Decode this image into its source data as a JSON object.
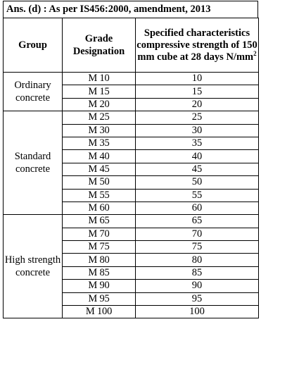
{
  "answer_heading": "Ans. (d) : As per IS456:2000, amendment, 2013",
  "table": {
    "headers": {
      "group": "Group",
      "grade_designation": "Grade Designation",
      "strength": "Specified characteristics compressive strength of 150 mm cube at 28 days N/mm",
      "strength_unit_exponent": "2"
    },
    "groups": [
      {
        "name": "Ordinary concrete",
        "rows": [
          {
            "grade": "M 10",
            "strength": "10"
          },
          {
            "grade": "M 15",
            "strength": "15"
          },
          {
            "grade": "M 20",
            "strength": "20"
          }
        ]
      },
      {
        "name": "Standard concrete",
        "rows": [
          {
            "grade": "M 25",
            "strength": "25"
          },
          {
            "grade": "M 30",
            "strength": "30"
          },
          {
            "grade": "M 35",
            "strength": "35"
          },
          {
            "grade": "M 40",
            "strength": "40"
          },
          {
            "grade": "M 45",
            "strength": "45"
          },
          {
            "grade": "M 50",
            "strength": "50"
          },
          {
            "grade": "M 55",
            "strength": "55"
          },
          {
            "grade": "M 60",
            "strength": "60"
          }
        ]
      },
      {
        "name": "High strength concrete",
        "rows": [
          {
            "grade": "M 65",
            "strength": "65"
          },
          {
            "grade": "M 70",
            "strength": "70"
          },
          {
            "grade": "M 75",
            "strength": "75"
          },
          {
            "grade": "M 80",
            "strength": "80"
          },
          {
            "grade": "M 85",
            "strength": "85"
          },
          {
            "grade": "M 90",
            "strength": "90"
          },
          {
            "grade": "M 95",
            "strength": "95"
          },
          {
            "grade": "M 100",
            "strength": "100"
          }
        ]
      }
    ]
  }
}
